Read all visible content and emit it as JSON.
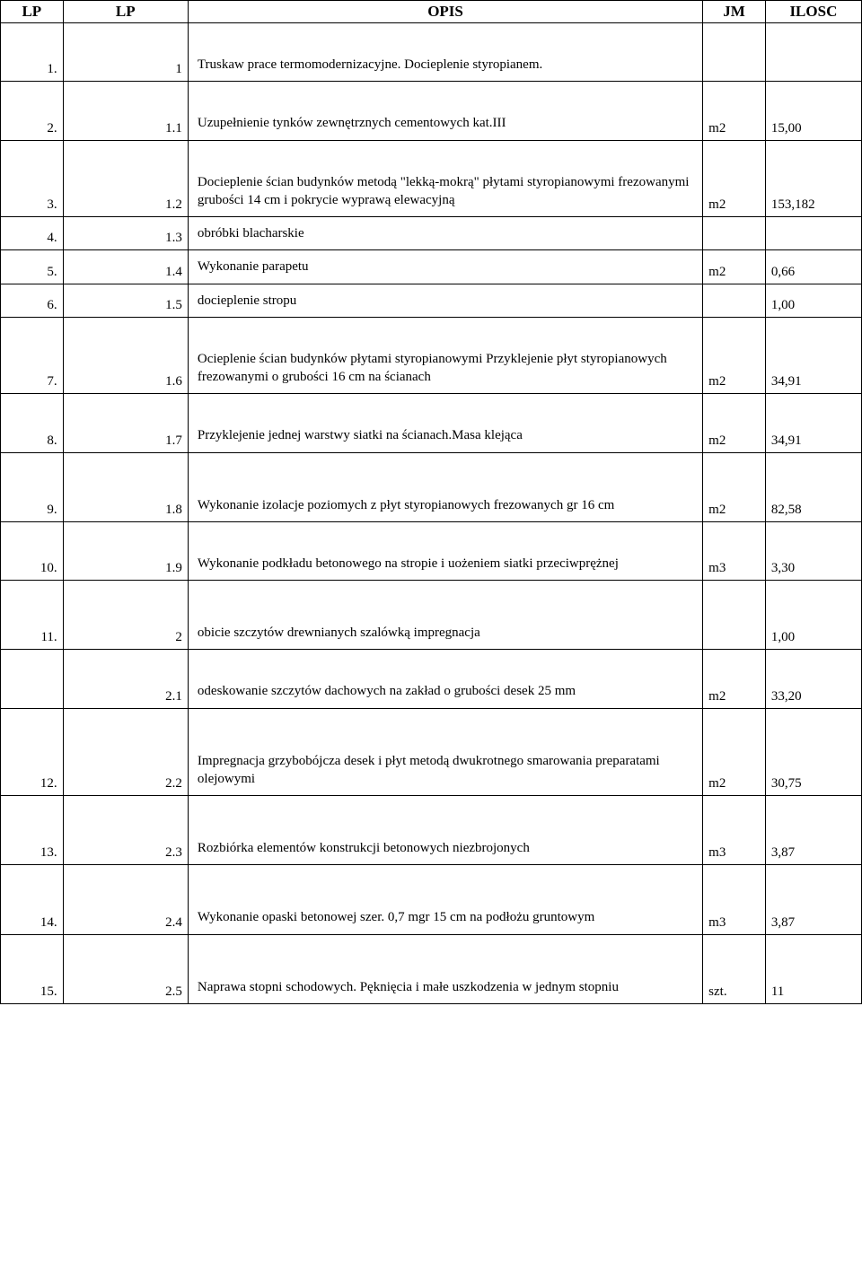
{
  "table": {
    "headers": {
      "lp1": "LP",
      "lp2": "LP",
      "opis": "OPIS",
      "jm": "JM",
      "ilosc": "ILOSC"
    },
    "rows": [
      {
        "lp1": "1.",
        "lp2": "1",
        "opis": "Truskaw prace termomodernizacyjne. Docieplenie styropianem.",
        "jm": "",
        "ilosc": "",
        "padTop": true
      },
      {
        "lp1": "2.",
        "lp2": "1.1",
        "opis": "Uzupełnienie tynków zewnętrznych cementowych kat.III",
        "jm": "m2",
        "ilosc": "15,00",
        "padTop": true
      },
      {
        "lp1": "3.",
        "lp2": "1.2",
        "opis": "Docieplenie ścian budynków metodą \"lekką-mokrą\" płytami styropianowymi frezowanymi grubości 14 cm i pokrycie wyprawą elewacyjną",
        "jm": "m2",
        "ilosc": "153,182",
        "padTop": true
      },
      {
        "lp1": "4.",
        "lp2": "1.3",
        "opis": "obróbki blacharskie",
        "jm": "",
        "ilosc": ""
      },
      {
        "lp1": "5.",
        "lp2": "1.4",
        "opis": "Wykonanie parapetu",
        "jm": "m2",
        "ilosc": "0,66"
      },
      {
        "lp1": "6.",
        "lp2": "1.5",
        "opis": "docieplenie stropu",
        "jm": "",
        "ilosc": "1,00"
      },
      {
        "lp1": "7.",
        "lp2": "1.6",
        "opis": "Ocieplenie ścian budynków płytami styropianowymi Przyklejenie płyt styropianowych frezowanymi o grubości 16 cm na ścianach",
        "jm": "m2",
        "ilosc": "34,91",
        "padTop": true
      },
      {
        "lp1": "8.",
        "lp2": "1.7",
        "opis": "Przyklejenie jednej warstwy siatki na ścianach.Masa klejąca",
        "jm": "m2",
        "ilosc": "34,91",
        "padTop": true
      },
      {
        "lp1": "9.",
        "lp2": "1.8",
        "opis": "Wykonanie izolacje poziomych  z płyt styropianowych frezowanych gr 16 cm",
        "jm": "m2",
        "ilosc": "82,58",
        "padTop2": true
      },
      {
        "lp1": "10.",
        "lp2": "1.9",
        "opis": "Wykonanie podkładu betonowego na stropie i uożeniem siatki  przeciwprężnej",
        "jm": "m3",
        "ilosc": "3,30",
        "padTop": true
      },
      {
        "lp1": "11.",
        "lp2": "2",
        "opis": "obicie szczytów drewnianych szalówką impregnacja",
        "jm": "",
        "ilosc": "1,00",
        "padTop2": true
      },
      {
        "lp1": "",
        "lp2": "2.1",
        "opis": "odeskowanie szczytów dachowych na zakład o grubości desek 25 mm",
        "jm": "m2",
        "ilosc": "33,20",
        "padTop": true
      },
      {
        "lp1": "12.",
        "lp2": "2.2",
        "opis": "Impregnacja grzybobójcza desek i płyt metodą dwukrotnego smarowania preparatami olejowymi",
        "jm": "m2",
        "ilosc": "30,75",
        "padTop2": true
      },
      {
        "lp1": "13.",
        "lp2": "2.3",
        "opis": "Rozbiórka elementów konstrukcji betonowych niezbrojonych",
        "jm": "m3",
        "ilosc": "3,87",
        "padTop2": true
      },
      {
        "lp1": "14.",
        "lp2": "2.4",
        "opis": "Wykonanie opaski betonowej szer. 0,7 mgr 15 cm  na podłożu gruntowym",
        "jm": "m3",
        "ilosc": "3,87",
        "padTop2": true
      },
      {
        "lp1": "15.",
        "lp2": "2.5",
        "opis": "Naprawa stopni schodowych. Pęknięcia i małe uszkodzenia w jednym stopniu",
        "jm": "szt.",
        "ilosc": "11",
        "padTop2": true
      }
    ]
  }
}
